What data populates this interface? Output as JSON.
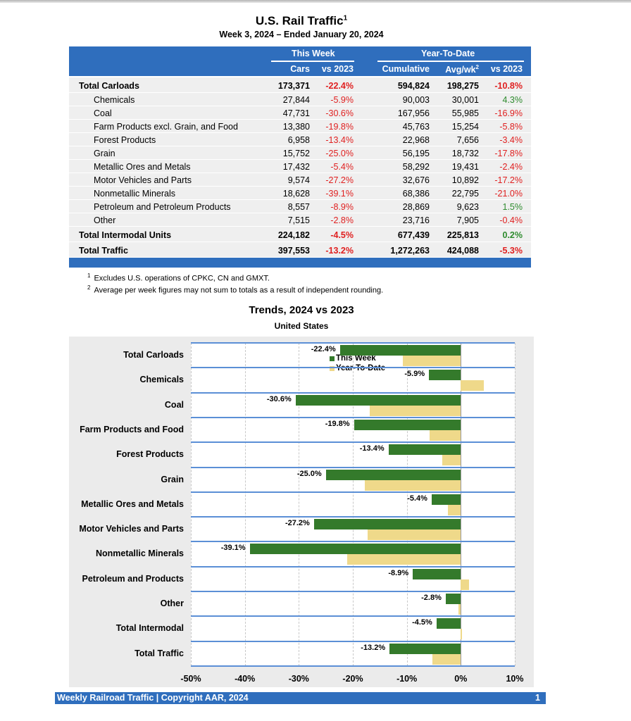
{
  "title": "U.S. Rail Traffic",
  "title_sup": "1",
  "subtitle": "Week 3, 2024 – Ended January 20, 2024",
  "table": {
    "group_this_week": "This Week",
    "group_ytd": "Year-To-Date",
    "columns": [
      "Cars",
      "vs 2023",
      "Cumulative",
      "Avg/wk",
      "vs 2023"
    ],
    "avg_sup": "2",
    "rows": [
      {
        "label": "Total Carloads",
        "total": true,
        "cars": "173,371",
        "wk_vs": "-22.4%",
        "cum": "594,824",
        "avg": "198,275",
        "ytd_vs": "-10.8%"
      },
      {
        "label": "Chemicals",
        "cars": "27,844",
        "wk_vs": "-5.9%",
        "cum": "90,003",
        "avg": "30,001",
        "ytd_vs": "4.3%"
      },
      {
        "label": "Coal",
        "cars": "47,731",
        "wk_vs": "-30.6%",
        "cum": "167,956",
        "avg": "55,985",
        "ytd_vs": "-16.9%"
      },
      {
        "label": "Farm Products excl. Grain, and Food",
        "cars": "13,380",
        "wk_vs": "-19.8%",
        "cum": "45,763",
        "avg": "15,254",
        "ytd_vs": "-5.8%"
      },
      {
        "label": "Forest Products",
        "cars": "6,958",
        "wk_vs": "-13.4%",
        "cum": "22,968",
        "avg": "7,656",
        "ytd_vs": "-3.4%"
      },
      {
        "label": "Grain",
        "cars": "15,752",
        "wk_vs": "-25.0%",
        "cum": "56,195",
        "avg": "18,732",
        "ytd_vs": "-17.8%"
      },
      {
        "label": "Metallic Ores and Metals",
        "cars": "17,432",
        "wk_vs": "-5.4%",
        "cum": "58,292",
        "avg": "19,431",
        "ytd_vs": "-2.4%"
      },
      {
        "label": "Motor Vehicles and Parts",
        "cars": "9,574",
        "wk_vs": "-27.2%",
        "cum": "32,676",
        "avg": "10,892",
        "ytd_vs": "-17.2%"
      },
      {
        "label": "Nonmetallic Minerals",
        "cars": "18,628",
        "wk_vs": "-39.1%",
        "cum": "68,386",
        "avg": "22,795",
        "ytd_vs": "-21.0%"
      },
      {
        "label": "Petroleum and Petroleum Products",
        "cars": "8,557",
        "wk_vs": "-8.9%",
        "cum": "28,869",
        "avg": "9,623",
        "ytd_vs": "1.5%"
      },
      {
        "label": "Other",
        "cars": "7,515",
        "wk_vs": "-2.8%",
        "cum": "23,716",
        "avg": "7,905",
        "ytd_vs": "-0.4%"
      },
      {
        "label": "Total Intermodal Units",
        "total": true,
        "cars": "224,182",
        "wk_vs": "-4.5%",
        "cum": "677,439",
        "avg": "225,813",
        "ytd_vs": "0.2%"
      },
      {
        "label": "Total Traffic",
        "total": true,
        "cars": "397,553",
        "wk_vs": "-13.2%",
        "cum": "1,272,263",
        "avg": "424,088",
        "ytd_vs": "-5.3%"
      }
    ]
  },
  "footnotes": [
    {
      "mark": "1",
      "text": "Excludes U.S. operations of CPKC, CN and GMXT."
    },
    {
      "mark": "2",
      "text": "Average per week figures may not sum to totals as a result of independent rounding."
    }
  ],
  "colors": {
    "header": "#2f6ebd",
    "negative": "#e02020",
    "positive": "#2e8b2e",
    "this_week": "#347a2b",
    "ytd": "#efd98a"
  },
  "chart_data": {
    "type": "bar",
    "orientation": "horizontal",
    "title": "Trends, 2024 vs 2023",
    "subtitle": "United States",
    "categories": [
      "Total Carloads",
      "Chemicals",
      "Coal",
      "Farm Products and Food",
      "Forest Products",
      "Grain",
      "Metallic Ores and Metals",
      "Motor Vehicles and Parts",
      "Nonmetallic Minerals",
      "Petroleum and Products",
      "Other",
      "Total Intermodal",
      "Total Traffic"
    ],
    "series": [
      {
        "name": "This Week",
        "values": [
          -22.4,
          -5.9,
          -30.6,
          -19.8,
          -13.4,
          -25.0,
          -5.4,
          -27.2,
          -39.1,
          -8.9,
          -2.8,
          -4.5,
          -13.2
        ],
        "labels": [
          "-22.4%",
          "-5.9%",
          "-30.6%",
          "-19.8%",
          "-13.4%",
          "-25.0%",
          "-5.4%",
          "-27.2%",
          "-39.1%",
          "-8.9%",
          "-2.8%",
          "-4.5%",
          "-13.2%"
        ]
      },
      {
        "name": "Year-To-Date",
        "values": [
          -10.8,
          4.3,
          -16.9,
          -5.8,
          -3.4,
          -17.8,
          -2.4,
          -17.2,
          -21.0,
          1.5,
          -0.4,
          0.2,
          -5.3
        ]
      }
    ],
    "xlim": [
      -50,
      10
    ],
    "xticks": [
      "-50%",
      "-40%",
      "-30%",
      "-20%",
      "-10%",
      "0%",
      "10%"
    ],
    "legend": "top-left",
    "grid": true
  },
  "footer": {
    "left": "Weekly Railroad Traffic | Copyright AAR, 2024",
    "page": "1"
  }
}
